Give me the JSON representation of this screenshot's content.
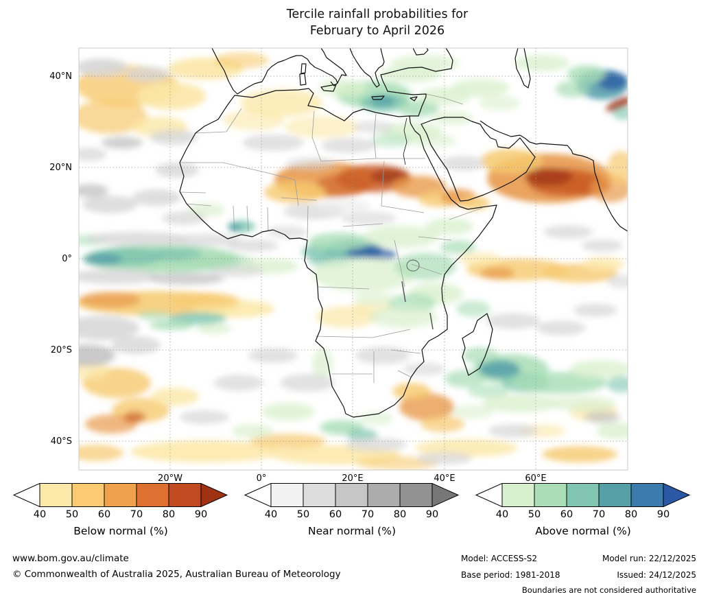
{
  "title": {
    "line1": "Tercile rainfall probabilities for",
    "line2": "February to April 2026"
  },
  "map": {
    "lat_labels": [
      "40°N",
      "20°N",
      "0°",
      "20°S",
      "40°S"
    ],
    "lon_labels": [
      "20°W",
      "0°",
      "20°E",
      "40°E",
      "60°E"
    ]
  },
  "legends": [
    {
      "label": "Below normal (%)",
      "ticks": [
        "40",
        "50",
        "60",
        "70",
        "80",
        "90"
      ],
      "colors": [
        "#FCE9A9",
        "#FACB72",
        "#F0A14B",
        "#DE7030",
        "#C14A22",
        "#9E3213"
      ]
    },
    {
      "label": "Near normal (%)",
      "ticks": [
        "40",
        "50",
        "60",
        "70",
        "80",
        "90"
      ],
      "colors": [
        "#F2F2F2",
        "#DDDDDD",
        "#C6C6C6",
        "#ACACAC",
        "#929292",
        "#777777"
      ]
    },
    {
      "label": "Above normal (%)",
      "ticks": [
        "40",
        "50",
        "60",
        "70",
        "80",
        "90"
      ],
      "colors": [
        "#D9F0CE",
        "#ABDEB7",
        "#7FC5AF",
        "#55A0A6",
        "#3B7CAC",
        "#2B58A5"
      ]
    }
  ],
  "footer": {
    "website": "www.bom.gov.au/climate",
    "copyright": "© Commonwealth of Australia 2025, Australian Bureau of Meteorology",
    "model_label": "Model: ACCESS-S2",
    "model_run": "Model run: 22/12/2025",
    "base_period": "Base period: 1981-2018",
    "issued": "Issued: 24/12/2025",
    "disclaimer": "Boundaries are not considered authoritative"
  }
}
